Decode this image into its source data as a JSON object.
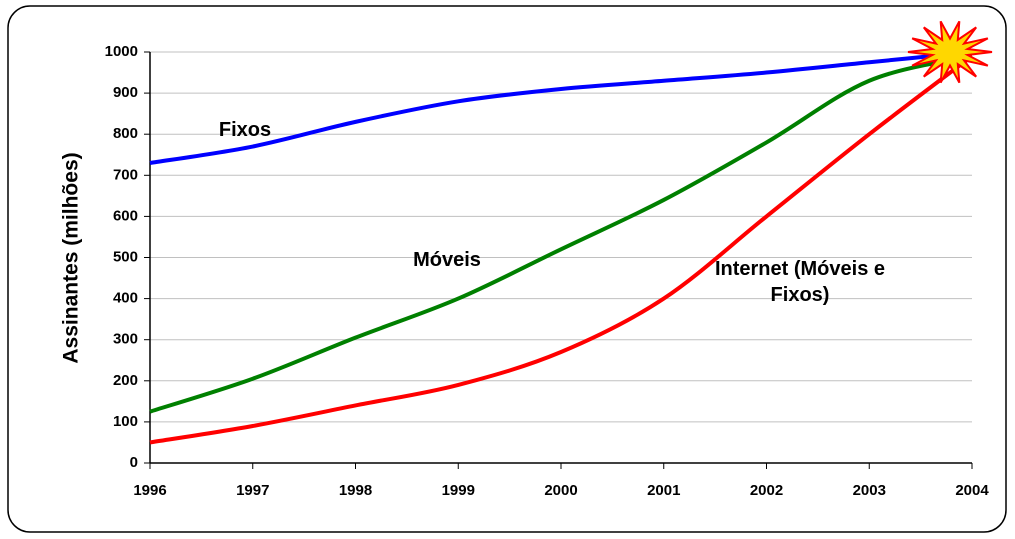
{
  "chart_data": {
    "type": "line",
    "ylabel": "Assinantes (milhões)",
    "x": [
      1996,
      1997,
      1998,
      1999,
      2000,
      2001,
      2002,
      2003,
      2004
    ],
    "xlim": [
      1996,
      2004
    ],
    "xticks": [
      1996,
      1997,
      1998,
      1999,
      2000,
      2001,
      2002,
      2003,
      2004
    ],
    "ylim": [
      0,
      1000
    ],
    "yticks": [
      0,
      100,
      200,
      300,
      400,
      500,
      600,
      700,
      800,
      900,
      1000
    ],
    "grid": true,
    "series": [
      {
        "name": "Fixos",
        "color": "#0000ff",
        "values": [
          730,
          770,
          830,
          880,
          910,
          930,
          950,
          975,
          1000
        ]
      },
      {
        "name": "Móveis",
        "color": "#008000",
        "values": [
          125,
          205,
          305,
          400,
          520,
          640,
          780,
          930,
          990
        ]
      },
      {
        "name": "Internet (Móveis e Fixos)",
        "color": "#ff0000",
        "values": [
          50,
          90,
          140,
          190,
          270,
          400,
          600,
          800,
          990
        ]
      }
    ]
  }
}
